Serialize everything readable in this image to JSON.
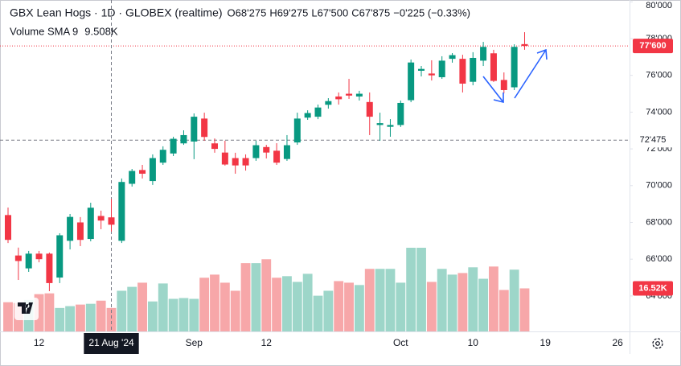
{
  "chart_data": {
    "type": "candlestick",
    "title": "GBX Lean Hogs · 1D · GLOBEX (realtime)",
    "ohlc_legend": [
      {
        "key": "O",
        "value": 68.275,
        "label": "68'275"
      },
      {
        "key": "H",
        "value": 69.275,
        "label": "69'275"
      },
      {
        "key": "L",
        "value": 67.5,
        "label": "67'500"
      },
      {
        "key": "C",
        "value": 67.875,
        "label": "67'875"
      }
    ],
    "change": "−0'225 (−0.33%)",
    "volume_legend": {
      "name": "Volume SMA 9",
      "label": "9.508K"
    },
    "categories": [
      null,
      null,
      null,
      "12",
      null,
      null,
      null,
      null,
      null,
      null,
      "21 Aug '24",
      null,
      null,
      null,
      null,
      null,
      null,
      null,
      "Sep",
      null,
      null,
      null,
      null,
      null,
      null,
      "12",
      null,
      null,
      null,
      null,
      null,
      null,
      null,
      null,
      null,
      null,
      null,
      null,
      "Oct",
      null,
      null,
      null,
      null,
      null,
      null,
      "10",
      null,
      null,
      null,
      null,
      null,
      null,
      "19",
      null,
      null,
      null,
      null,
      null,
      null,
      "26"
    ],
    "open": [
      68.4,
      66.2,
      65.5,
      66.3,
      66.3,
      65.0,
      67.0,
      68.0,
      67.1,
      68.35,
      68.275,
      67.0,
      70.1,
      70.85,
      70.25,
      71.25,
      71.75,
      72.3,
      72.4,
      73.65,
      72.3,
      71.8,
      71.5,
      71.5,
      71.5,
      72.1,
      71.9,
      71.45,
      72.35,
      73.7,
      73.75,
      74.4,
      74.85,
      75.0,
      74.85,
      74.55,
      73.3,
      73.2,
      73.3,
      74.65,
      76.25,
      76.1,
      75.9,
      76.9,
      76.9,
      75.65,
      76.8,
      77.2,
      75.75,
      75.35,
      77.7,
      null,
      null,
      null,
      null,
      null,
      null,
      null,
      null,
      null
    ],
    "high": [
      68.81,
      66.63,
      66.45,
      66.45,
      66.36,
      67.41,
      68.46,
      68.29,
      69.07,
      68.64,
      69.275,
      70.39,
      70.91,
      71.13,
      71.7,
      72.14,
      72.66,
      73.01,
      73.93,
      73.97,
      72.57,
      72.44,
      71.79,
      71.7,
      72.44,
      72.22,
      72.31,
      72.75,
      73.97,
      74.1,
      74.41,
      74.76,
      75.07,
      75.81,
      75.16,
      75.07,
      73.97,
      73.62,
      74.63,
      76.86,
      76.51,
      76.82,
      77.04,
      77.21,
      77.12,
      77.26,
      77.82,
      77.39,
      76.16,
      77.69,
      78.35,
      null,
      null,
      null,
      null,
      null,
      null,
      null,
      null,
      null
    ],
    "low": [
      66.88,
      64.87,
      65.31,
      65.83,
      64.26,
      64.7,
      66.53,
      66.71,
      66.97,
      67.63,
      67.5,
      66.88,
      69.95,
      70.39,
      70.04,
      71.13,
      71.61,
      72.22,
      71.44,
      72.44,
      71.79,
      71.09,
      70.65,
      70.82,
      71.35,
      71.48,
      71.13,
      71.35,
      72.22,
      73.58,
      73.62,
      74.19,
      74.41,
      74.72,
      74.63,
      72.75,
      72.44,
      72.66,
      73.19,
      74.54,
      75.94,
      75.72,
      75.81,
      76.69,
      75.07,
      75.46,
      76.51,
      75.64,
      75.02,
      75.2,
      77.39,
      null,
      null,
      null,
      null,
      null,
      null,
      null,
      null,
      null
    ],
    "close": [
      67.05,
      65.9,
      66.3,
      66.0,
      64.7,
      67.3,
      68.3,
      67.05,
      68.8,
      68.1,
      67.875,
      70.2,
      70.8,
      70.65,
      71.5,
      71.95,
      72.55,
      72.75,
      73.75,
      72.65,
      72.0,
      71.15,
      71.1,
      71.1,
      72.2,
      71.8,
      71.25,
      72.2,
      73.65,
      73.95,
      74.25,
      74.6,
      74.7,
      74.9,
      75.0,
      73.75,
      73.4,
      73.3,
      74.5,
      76.7,
      76.35,
      76.0,
      76.8,
      77.1,
      75.55,
      76.95,
      77.55,
      75.7,
      75.2,
      77.55,
      77.6,
      null,
      null,
      null,
      null,
      null,
      null,
      null,
      null,
      null
    ],
    "volume": {
      "values": [
        11.2,
        10.9,
        12.1,
        14.3,
        14.6,
        9.0,
        9.7,
        10.3,
        10.6,
        11.8,
        9.0,
        15.6,
        17.1,
        18.7,
        11.5,
        18.4,
        12.5,
        12.8,
        12.5,
        20.6,
        21.8,
        18.7,
        15.6,
        26.2,
        26.2,
        27.7,
        20.6,
        21.2,
        19.0,
        22.1,
        13.7,
        15.6,
        19.3,
        18.7,
        17.8,
        24.0,
        24.0,
        24.0,
        18.7,
        32.1,
        32.1,
        19.0,
        24.0,
        21.8,
        22.4,
        24.6,
        20.2,
        24.9,
        15.9,
        23.7,
        16.52,
        null,
        null,
        null,
        null,
        null,
        null,
        null,
        null,
        null
      ],
      "value_labels": [
        null,
        null,
        null,
        null,
        null,
        null,
        null,
        null,
        null,
        null,
        null,
        null,
        null,
        null,
        null,
        null,
        null,
        null,
        null,
        null,
        null,
        null,
        null,
        null,
        null,
        null,
        null,
        null,
        null,
        null,
        null,
        null,
        null,
        null,
        null,
        null,
        null,
        null,
        null,
        null,
        null,
        null,
        null,
        null,
        null,
        null,
        null,
        null,
        null,
        null,
        "16.52K",
        null,
        null,
        null,
        null,
        null,
        null,
        null,
        null,
        null
      ]
    },
    "up_color": "#089981",
    "down_color": "#f23645",
    "volume_up_color": "#9dd6c9",
    "volume_down_color": "#f7a7a9",
    "ylim": [
      62.07,
      80.1
    ],
    "yticks": [
      {
        "value": 64,
        "label": "64'000"
      },
      {
        "value": 66,
        "label": "66'000"
      },
      {
        "value": 68,
        "label": "68'000"
      },
      {
        "value": 70,
        "label": "70'000"
      },
      {
        "value": 72,
        "label": "72'000"
      },
      {
        "value": 74,
        "label": "74'000"
      },
      {
        "value": 76,
        "label": "76'000"
      },
      {
        "value": 78,
        "label": "78'000"
      },
      {
        "value": 80,
        "label": "80'000"
      }
    ],
    "last_price": {
      "value": 77.6,
      "label": "77'600"
    },
    "crosshair": {
      "value": 72.475,
      "label": "72'475"
    }
  }
}
